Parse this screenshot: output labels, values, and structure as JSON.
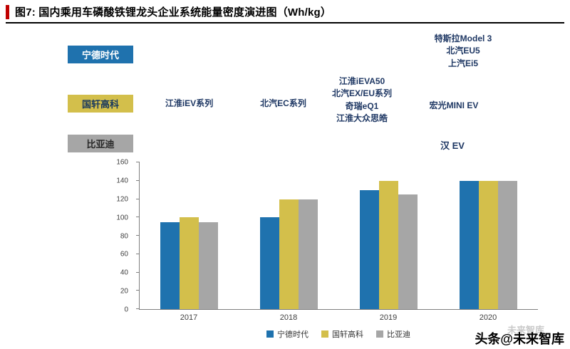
{
  "header": {
    "title": "图7: 国内乘用车磷酸铁锂龙头企业系统能量密度演进图（Wh/kg）"
  },
  "company_labels": [
    {
      "name": "宁德时代"
    },
    {
      "name": "国轩高科"
    },
    {
      "name": "比亚迪"
    }
  ],
  "annotations": {
    "catl_2020": "特斯拉Model 3\n北汽EU5\n上汽Ei5",
    "gotion_2017": "江淮iEV系列",
    "gotion_2018": "北汽EC系列",
    "gotion_2019": "江淮iEVA50\n北汽EX/EU系列\n奇瑞eQ1\n江淮大众思皓",
    "gotion_2020": "宏光MINI EV",
    "byd_2020": "汉 EV"
  },
  "chart_data": {
    "type": "bar",
    "title": "国内乘用车磷酸铁锂龙头企业系统能量密度演进图（Wh/kg）",
    "categories": [
      "2017",
      "2018",
      "2019",
      "2020"
    ],
    "series": [
      {
        "name": "宁德时代",
        "color": "#1F72AE",
        "values": [
          95,
          100,
          130,
          140
        ]
      },
      {
        "name": "国轩高科",
        "color": "#D3BF4B",
        "values": [
          100,
          120,
          140,
          140
        ]
      },
      {
        "name": "比亚迪",
        "color": "#A6A6A6",
        "values": [
          95,
          120,
          125,
          140
        ]
      }
    ],
    "xlabel": "",
    "ylabel": "",
    "ylim": [
      0,
      160
    ],
    "yticks": [
      0,
      20,
      40,
      60,
      80,
      100,
      120,
      140,
      160
    ],
    "grid": false,
    "legend_position": "bottom"
  },
  "watermark": {
    "faint": "未来智库",
    "main": "头条@未来智库"
  },
  "colors": {
    "accent_red": "#C00000",
    "navy_text": "#1F3864",
    "catl_blue": "#1F72AE",
    "gotion_gold": "#D3BF4B",
    "byd_gray": "#A6A6A6"
  }
}
